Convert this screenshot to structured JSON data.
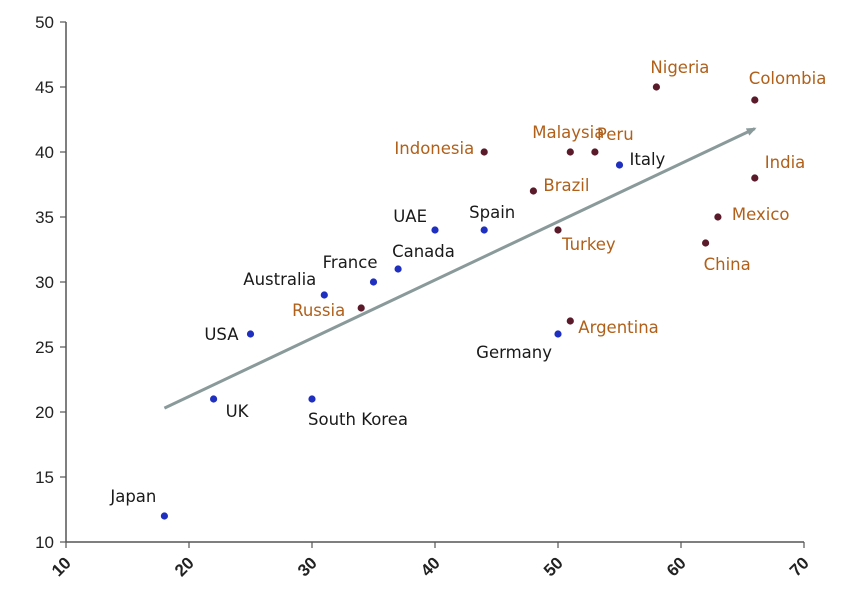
{
  "chart_data": {
    "type": "scatter",
    "title": "",
    "xlabel": "",
    "ylabel": "",
    "xlim": [
      10,
      70
    ],
    "ylim": [
      10,
      50
    ],
    "x_ticks": [
      10,
      20,
      30,
      40,
      50,
      60,
      70
    ],
    "y_ticks": [
      10,
      15,
      20,
      25,
      30,
      35,
      40,
      45,
      50
    ],
    "grid": false,
    "colors": {
      "group_a_point": "#1f2fbf",
      "group_a_label": "#1a1a1a",
      "group_b_point": "#5a1a2a",
      "group_b_label": "#b0601a",
      "trend": "#8a9a9a"
    },
    "trend_line": {
      "x": [
        18,
        66
      ],
      "y": [
        20.3,
        41.8
      ]
    },
    "points": [
      {
        "label": "Japan",
        "x": 18,
        "y": 12,
        "group": "a"
      },
      {
        "label": "UK",
        "x": 22,
        "y": 21,
        "group": "a"
      },
      {
        "label": "USA",
        "x": 25,
        "y": 26,
        "group": "a"
      },
      {
        "label": "South Korea",
        "x": 30,
        "y": 21,
        "group": "a"
      },
      {
        "label": "Australia",
        "x": 31,
        "y": 29,
        "group": "a"
      },
      {
        "label": "France",
        "x": 35,
        "y": 30,
        "group": "a"
      },
      {
        "label": "Canada",
        "x": 37,
        "y": 31,
        "group": "a"
      },
      {
        "label": "UAE",
        "x": 40,
        "y": 34,
        "group": "a"
      },
      {
        "label": "Spain",
        "x": 44,
        "y": 34,
        "group": "a"
      },
      {
        "label": "Germany",
        "x": 50,
        "y": 26,
        "group": "a"
      },
      {
        "label": "Italy",
        "x": 55,
        "y": 39,
        "group": "a"
      },
      {
        "label": "Russia",
        "x": 34,
        "y": 28,
        "group": "b"
      },
      {
        "label": "Indonesia",
        "x": 44,
        "y": 40,
        "group": "b"
      },
      {
        "label": "Brazil",
        "x": 48,
        "y": 37,
        "group": "b"
      },
      {
        "label": "Turkey",
        "x": 50,
        "y": 34,
        "group": "b"
      },
      {
        "label": "Malaysia",
        "x": 51,
        "y": 40,
        "group": "b"
      },
      {
        "label": "Argentina",
        "x": 51,
        "y": 27,
        "group": "b"
      },
      {
        "label": "Peru",
        "x": 53,
        "y": 40,
        "group": "b"
      },
      {
        "label": "Nigeria",
        "x": 58,
        "y": 45,
        "group": "b"
      },
      {
        "label": "China",
        "x": 62,
        "y": 33,
        "group": "b"
      },
      {
        "label": "Mexico",
        "x": 63,
        "y": 35,
        "group": "b"
      },
      {
        "label": "Colombia",
        "x": 66,
        "y": 44,
        "group": "b"
      },
      {
        "label": "India",
        "x": 66,
        "y": 38,
        "group": "b"
      }
    ]
  }
}
